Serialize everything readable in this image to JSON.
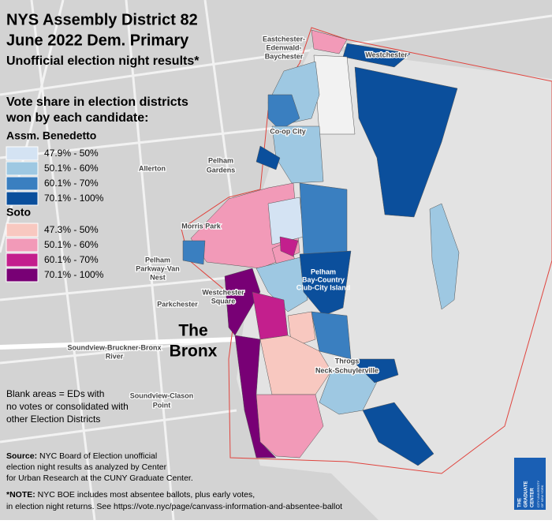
{
  "title": [
    "NYS Assembly District 82",
    "June 2022 Dem. Primary",
    "Unofficial election night results*"
  ],
  "subtitle": [
    "Vote share in election districts",
    "won by each candidate:"
  ],
  "legend": {
    "benedetto": {
      "name": "Assm. Benedetto",
      "items": [
        {
          "label": "47.9% - 50%",
          "color": "#d4e3f3"
        },
        {
          "label": "50.1% - 60%",
          "color": "#9ec8e2"
        },
        {
          "label": "60.1% - 70%",
          "color": "#3a7fc0"
        },
        {
          "label": "70.1% - 100%",
          "color": "#0b4f9c"
        }
      ]
    },
    "soto": {
      "name": "Soto",
      "items": [
        {
          "label": "47.3% - 50%",
          "color": "#f8c8c0"
        },
        {
          "label": "50.1% - 60%",
          "color": "#f29ab8"
        },
        {
          "label": "60.1% - 70%",
          "color": "#c31f8d"
        },
        {
          "label": "70.1% - 100%",
          "color": "#780075"
        }
      ]
    }
  },
  "places": [
    "Eastchester-",
    "Edenwald-",
    "Baychester",
    "Westchester",
    "Co-op City",
    "Allerton",
    "Pelham",
    "Gardens",
    "Morris Park",
    "Pelham",
    "Parkway-Van",
    "Nest",
    "Parkchester",
    "Westchester",
    "Square",
    "Soundview-Bruckner-Bronx",
    "River",
    "Soundview-Clason",
    "Point",
    "Pelham",
    "Bay-Country",
    "Club-City Island",
    "Throgs",
    "Neck-Schuylerville"
  ],
  "borough": [
    "The",
    "Bronx"
  ],
  "blank_note": [
    "Blank areas = EDs with",
    "no votes or consolidated with",
    "other Election Districts"
  ],
  "source": {
    "label": "Source:",
    "lines": [
      " NYC Board of Election unofficial",
      "election night results as analyzed by Center",
      "for Urban Research at the CUNY Graduate Center."
    ]
  },
  "note": {
    "label": "*NOTE:",
    "lines": [
      " NYC BOE includes most absentee ballots, plus early votes,",
      "in election night returns. See https://vote.nyc/page/canvass-information-and-absentee-ballot"
    ]
  },
  "logo": [
    "THE",
    "GRADUATE",
    "CENTER",
    "CITY UNIVERSITY",
    "OF NEW YORK"
  ]
}
